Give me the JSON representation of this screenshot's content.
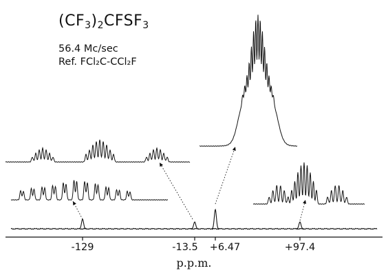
{
  "title": {
    "compound_main": "(CF",
    "compound_parts": [
      "3",
      ")",
      "2",
      "CFSF",
      "3"
    ]
  },
  "meta": {
    "frequency": "56.4 Mc/sec",
    "reference": "Ref. FCl₂C-CCl₂F"
  },
  "chart_data": {
    "type": "line",
    "title": "(CF3)2CFSF3",
    "xlabel": "p.p.m.",
    "ylabel": "",
    "xlim": [
      -220,
      190
    ],
    "x_ticks": [
      -129,
      -13.5,
      6.47,
      97.4
    ],
    "x_tick_labels": [
      "-129",
      "-13.5",
      "+6.47",
      "+97.4"
    ],
    "peaks": [
      {
        "position": -129,
        "label": "-129",
        "relative_height": 0.35
      },
      {
        "position": -13.5,
        "label": "-13.5",
        "relative_height": 0.25
      },
      {
        "position": 6.47,
        "label": "+6.47",
        "relative_height": 0.7
      },
      {
        "position": 97.4,
        "label": "+97.4",
        "relative_height": 0.25
      }
    ],
    "expansions": [
      {
        "from_peak": -129,
        "pattern": "multiplet",
        "lines": 11
      },
      {
        "from_peak": -13.5,
        "pattern": "three multiplet groups"
      },
      {
        "from_peak": 6.47,
        "pattern": "tall multiplet"
      },
      {
        "from_peak": 97.4,
        "pattern": "three multiplet groups"
      }
    ],
    "grid": false,
    "legend": "none"
  }
}
